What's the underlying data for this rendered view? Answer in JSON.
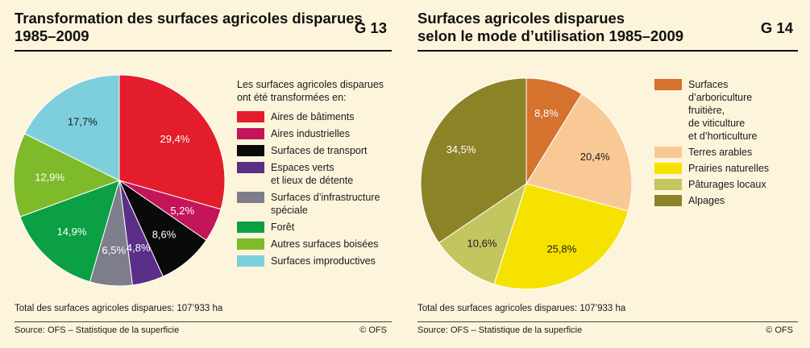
{
  "chart_data": [
    {
      "type": "pie",
      "title_lines": [
        "Transformation des surfaces agricoles disparues",
        "1985–2009"
      ],
      "figure_code": "G 13",
      "legend_intro": "Les surfaces agricoles disparues ont été transformées en:",
      "slices": [
        {
          "label": "Aires de bâtiments",
          "value": 29.4,
          "value_label": "29,4%",
          "color": "#e31d2b",
          "text_color": "#ffffff"
        },
        {
          "label": "Aires industrielles",
          "value": 5.2,
          "value_label": "5,2%",
          "color": "#c4145a",
          "text_color": "#ffffff"
        },
        {
          "label": "Surfaces de transport",
          "value": 8.6,
          "value_label": "8,6%",
          "color": "#0a0a0a",
          "text_color": "#ffffff"
        },
        {
          "label": "Espaces verts\net lieux de détente",
          "value": 4.8,
          "value_label": "4,8%",
          "color": "#5b2e87",
          "text_color": "#ffffff"
        },
        {
          "label": "Surfaces d’infrastructure\nspéciale",
          "value": 6.5,
          "value_label": "6,5%",
          "color": "#7d7d8c",
          "text_color": "#ffffff"
        },
        {
          "label": "Forêt",
          "value": 14.9,
          "value_label": "14,9%",
          "color": "#0aa043",
          "text_color": "#ffffff"
        },
        {
          "label": "Autres surfaces boisées",
          "value": 12.9,
          "value_label": "12,9%",
          "color": "#7fba2a",
          "text_color": "#ffffff"
        },
        {
          "label": "Surfaces improductives",
          "value": 17.7,
          "value_label": "17,7%",
          "color": "#7ecfdd",
          "text_color": "#1a1a1a"
        }
      ],
      "total_text": "Total des surfaces agricoles disparues: 107’933 ha",
      "source_text": "Source: OFS – Statistique de la superficie",
      "copyright": "© OFS"
    },
    {
      "type": "pie",
      "title_lines": [
        "Surfaces agricoles disparues",
        "selon le mode d’utilisation 1985–2009"
      ],
      "figure_code": "G 14",
      "slices": [
        {
          "label": "Surfaces\nd’arboriculture\nfruitière,\nde viticulture\net d’horticulture",
          "value": 8.8,
          "value_label": "8,8%",
          "color": "#d4722e",
          "text_color": "#ffffff"
        },
        {
          "label": "Terres arables",
          "value": 20.4,
          "value_label": "20,4%",
          "color": "#f9c995",
          "text_color": "#1a1a1a"
        },
        {
          "label": "Prairies naturelles",
          "value": 25.8,
          "value_label": "25,8%",
          "color": "#f6e200",
          "text_color": "#1a1a1a"
        },
        {
          "label": "Pâturages locaux",
          "value": 10.6,
          "value_label": "10,6%",
          "color": "#c3c65e",
          "text_color": "#1a1a1a"
        },
        {
          "label": "Alpages",
          "value": 34.5,
          "value_label": "34,5%",
          "color": "#8c8327",
          "text_color": "#ffffff"
        }
      ],
      "total_text": "Total des surfaces agricoles disparues: 107’933 ha",
      "source_text": "Source: OFS – Statistique de la superficie",
      "copyright": "© OFS"
    }
  ]
}
